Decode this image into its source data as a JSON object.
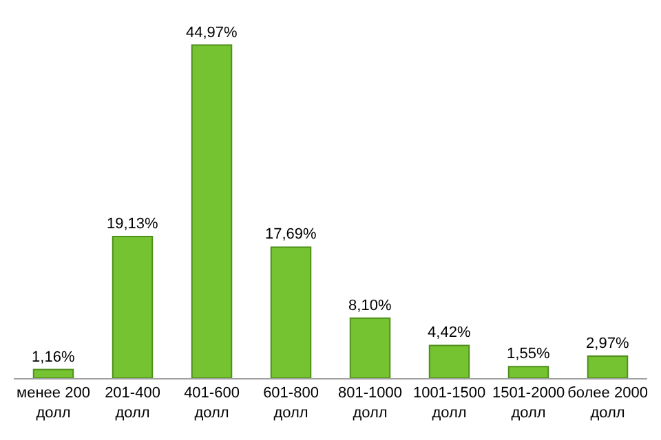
{
  "chart_data": {
    "type": "bar",
    "categories": [
      "менее 200\nдолл",
      "201-400\nдолл",
      "401-600\nдолл",
      "601-800\nдолл",
      "801-1000\nдолл",
      "1001-1500\nдолл",
      "1501-2000\nдолл",
      "более 2000\nдолл"
    ],
    "values": [
      1.16,
      19.13,
      44.97,
      17.69,
      8.1,
      4.42,
      1.55,
      2.97
    ],
    "value_labels": [
      "1,16%",
      "19,13%",
      "44,97%",
      "17,69%",
      "8,10%",
      "4,42%",
      "1,55%",
      "2,97%"
    ],
    "color": "#76c332",
    "tick_labels": "x",
    "legend": false
  }
}
